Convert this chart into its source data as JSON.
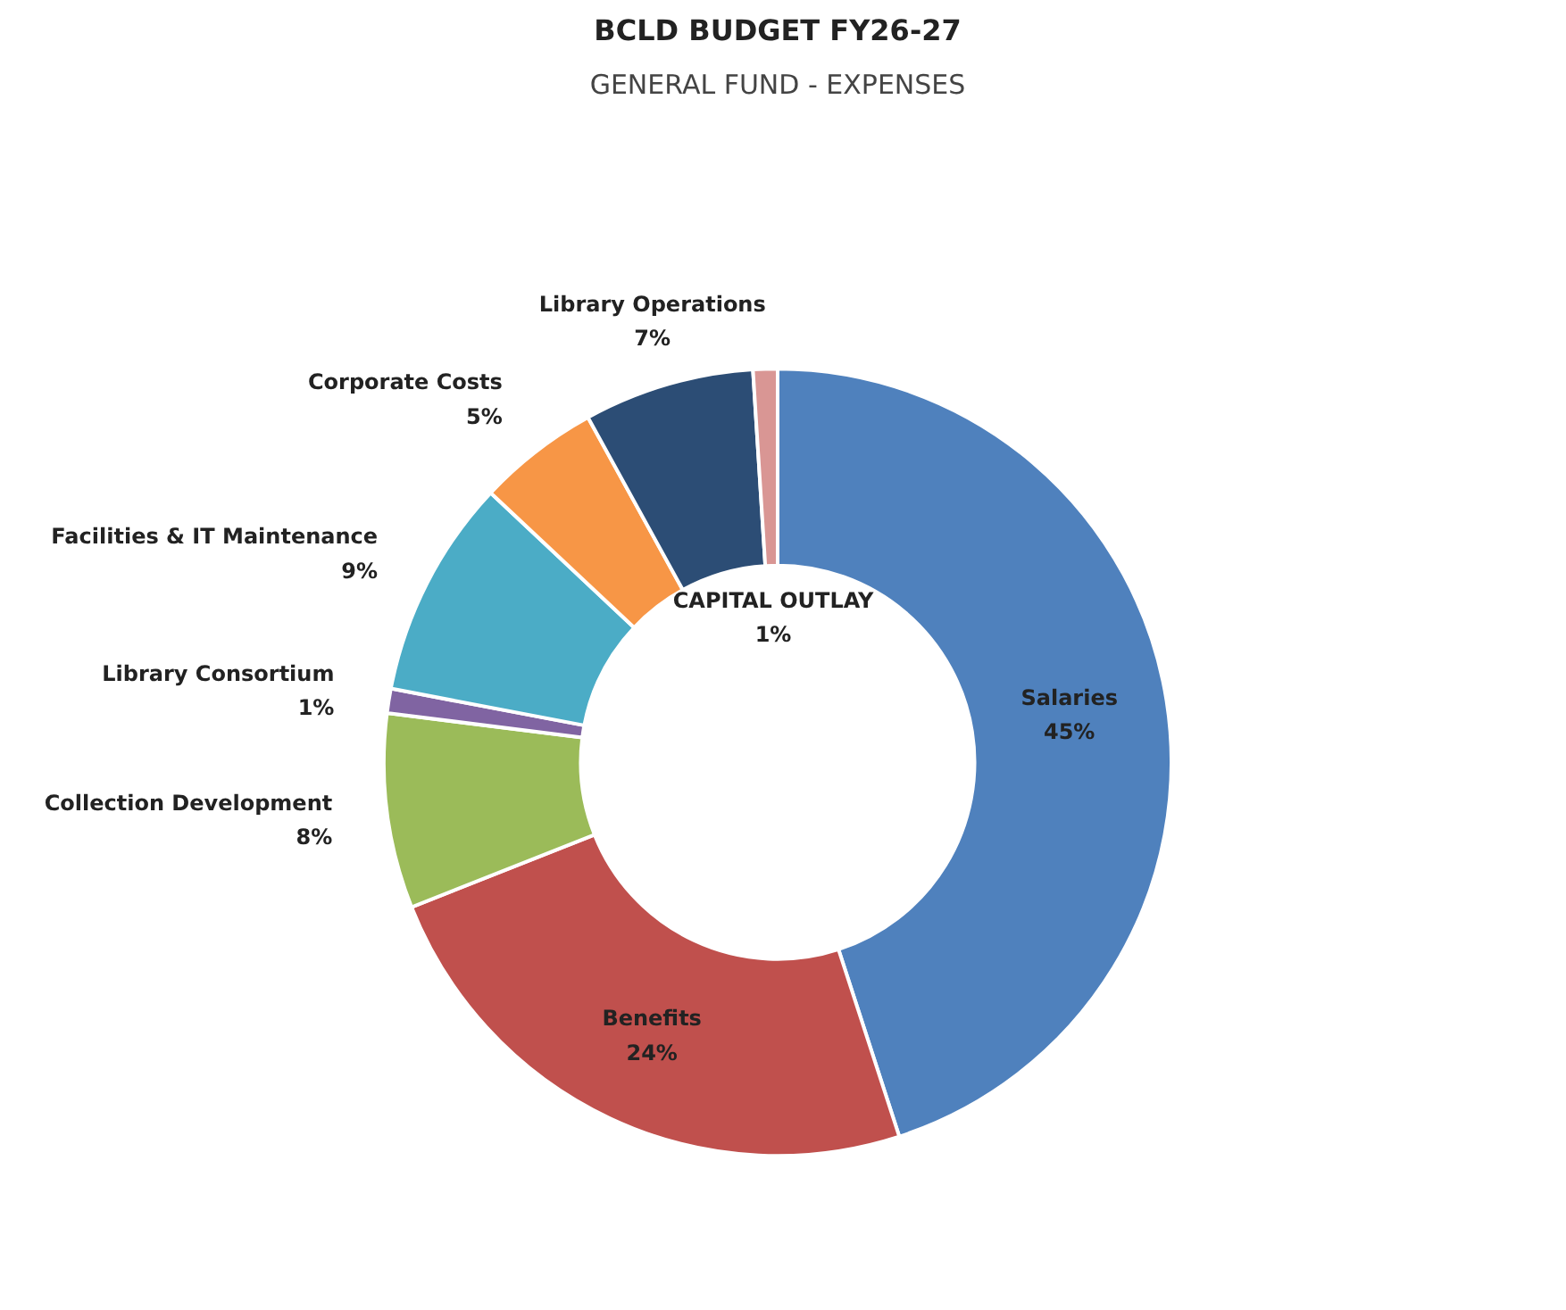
{
  "chart_data": {
    "type": "donut",
    "title": "BCLD BUDGET FY26-27",
    "subtitle": "GENERAL FUND - EXPENSES",
    "categories": [
      "Salaries",
      "Benefits",
      "Collection Development",
      "Library Consortium",
      "Facilities & IT Maintenance",
      "Corporate Costs",
      "Library Operations",
      "CAPITAL OUTLAY"
    ],
    "values": [
      45,
      24,
      8,
      1,
      9,
      5,
      7,
      1
    ],
    "value_labels": [
      "45%",
      "24%",
      "8%",
      "1%",
      "9%",
      "5%",
      "7%",
      "1%"
    ],
    "colors": [
      "#4f81bd",
      "#c0504d",
      "#9bbb59",
      "#8064a2",
      "#4bacc6",
      "#f79646",
      "#2c4d75",
      "#d99694"
    ]
  }
}
